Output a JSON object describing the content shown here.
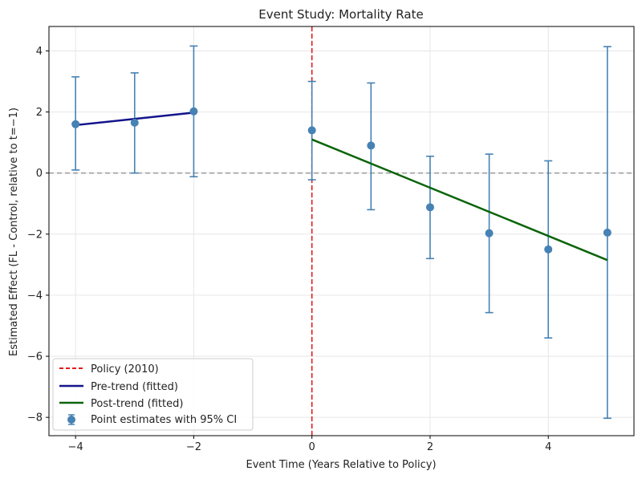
{
  "chart_data": {
    "type": "scatter",
    "title": "Event Study: Mortality Rate",
    "xlabel": "Event Time (Years Relative to Policy)",
    "ylabel": "Estimated Effect (FL - Control, relative to t=−1)",
    "xlim": [
      -4.45,
      5.45
    ],
    "ylim": [
      -8.6,
      4.8
    ],
    "xticks": [
      -4,
      -2,
      0,
      2,
      4
    ],
    "xtick_labels": [
      "−4",
      "−2",
      "0",
      "2",
      "4"
    ],
    "yticks": [
      -8,
      -6,
      -4,
      -2,
      0,
      2,
      4
    ],
    "ytick_labels": [
      "−8",
      "−6",
      "−4",
      "−2",
      "0",
      "2",
      "4"
    ],
    "grid": true,
    "legend_position": "lower-left",
    "point_estimates": {
      "name": "Point estimates with 95% CI",
      "color": "#4682b4",
      "points": [
        {
          "x": -4,
          "y": 1.6,
          "ci_low": 0.1,
          "ci_high": 3.15
        },
        {
          "x": -3,
          "y": 1.65,
          "ci_low": 0.0,
          "ci_high": 3.28
        },
        {
          "x": -2,
          "y": 2.02,
          "ci_low": -0.12,
          "ci_high": 4.16
        },
        {
          "x": 0,
          "y": 1.4,
          "ci_low": -0.22,
          "ci_high": 3.0
        },
        {
          "x": 1,
          "y": 0.9,
          "ci_low": -1.2,
          "ci_high": 2.95
        },
        {
          "x": 2,
          "y": -1.12,
          "ci_low": -2.8,
          "ci_high": 0.55
        },
        {
          "x": 3,
          "y": -1.97,
          "ci_low": -4.57,
          "ci_high": 0.62
        },
        {
          "x": 4,
          "y": -2.5,
          "ci_low": -5.4,
          "ci_high": 0.4
        },
        {
          "x": 5,
          "y": -1.95,
          "ci_low": -8.03,
          "ci_high": 4.14
        }
      ]
    },
    "policy_line": {
      "name": "Policy (2010)",
      "x": 0,
      "color": "#e31a1c"
    },
    "zero_line": {
      "y": 0,
      "color": "#a0a0a0"
    },
    "pre_trend": {
      "name": "Pre-trend (fitted)",
      "x": [
        -4,
        -2
      ],
      "y": [
        1.57,
        1.98
      ],
      "color": "#14148c"
    },
    "post_trend": {
      "name": "Post-trend (fitted)",
      "x": [
        0,
        5
      ],
      "y": [
        1.1,
        -2.85
      ],
      "color": "#0a640a"
    }
  }
}
